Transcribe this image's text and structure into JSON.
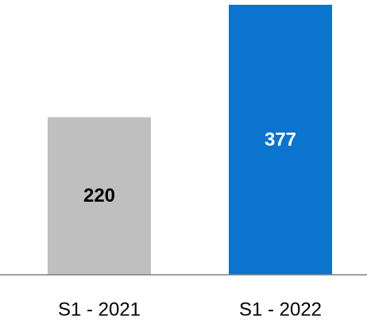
{
  "chart_data": {
    "type": "bar",
    "categories": [
      "S1 - 2021",
      "S1 - 2022"
    ],
    "values": [
      220,
      377
    ],
    "colors": [
      "#bfbfbf",
      "#0a74cf"
    ],
    "label_colors": [
      "#000000",
      "#ffffff"
    ]
  }
}
